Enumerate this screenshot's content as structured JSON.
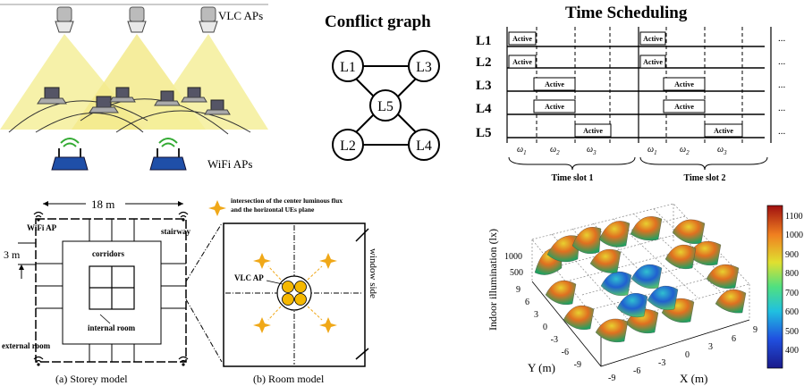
{
  "vlc": {
    "aps_label": "VLC APs",
    "wifi_label": "WiFi APs"
  },
  "conflict": {
    "title": "Conflict graph",
    "nodes": [
      "L1",
      "L3",
      "L5",
      "L2",
      "L4"
    ]
  },
  "schedule": {
    "title": "Time Scheduling",
    "rows": [
      "L1",
      "L2",
      "L3",
      "L4",
      "L5"
    ],
    "active_label": "Active",
    "ellipsis": "...",
    "omega": [
      "ω",
      "ω",
      "ω",
      "ω",
      "ω",
      "ω"
    ],
    "omega_sub": [
      "1",
      "2",
      "3",
      "1",
      "2",
      "3"
    ],
    "slots": [
      "Time slot 1",
      "Time slot 2"
    ]
  },
  "storey": {
    "width_label": "18 m",
    "height_label": "3 m",
    "wifi_ap": "WiFi AP",
    "stairway": "stairway",
    "corridors": "corridors",
    "internal_room": "internal room",
    "external_room": "external room",
    "caption": "(a) Storey model"
  },
  "room": {
    "legend_line1": "intersection of the center luminous flux",
    "legend_line2": "and the horizontal UEs plane",
    "vlc_ap": "VLC AP",
    "window_side": "window side",
    "caption": "(b) Room model"
  },
  "chart_data": {
    "type": "surface",
    "zlabel": "Indoor illumination (lx)",
    "xlabel": "X (m)",
    "ylabel": "Y (m)",
    "x_ticks": [
      "-9",
      "-6",
      "-3",
      "0",
      "3",
      "6",
      "9"
    ],
    "y_ticks": [
      "-9",
      "-6",
      "-3",
      "0",
      "3",
      "6",
      "9"
    ],
    "z_ticks": [
      "1000",
      "500"
    ],
    "colorbar_ticks": [
      "1100",
      "1000",
      "900",
      "800",
      "700",
      "600",
      "500",
      "400"
    ],
    "colorbar_range": [
      300,
      1150
    ],
    "grid": true
  },
  "colors": {
    "light_cone": "#f5ee9a",
    "active_orange": "#f5b800",
    "star": "#f0a818"
  }
}
